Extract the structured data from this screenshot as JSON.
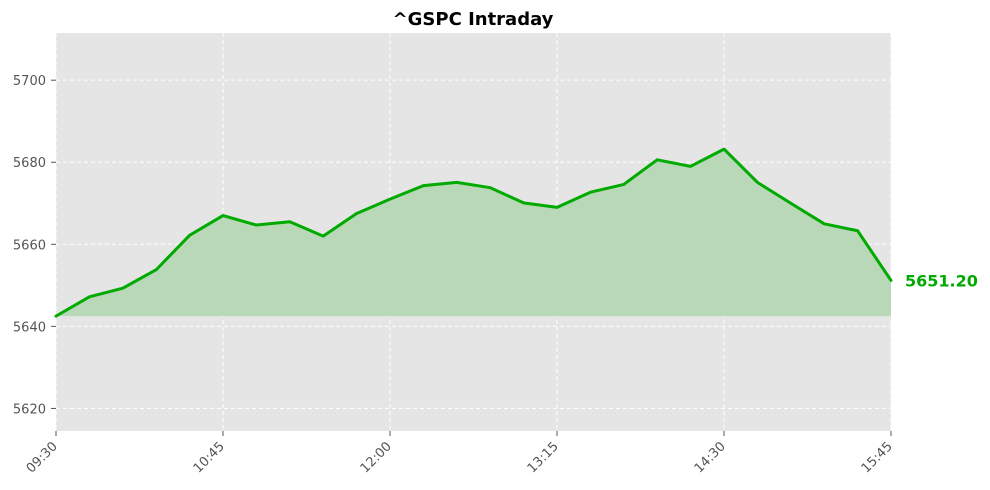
{
  "chart_data": {
    "type": "area",
    "title": "^GSPC Intraday",
    "xlabel": "",
    "ylabel": "",
    "x": [
      "09:30",
      "09:45",
      "10:00",
      "10:15",
      "10:30",
      "10:45",
      "11:00",
      "11:15",
      "11:30",
      "11:45",
      "12:00",
      "12:15",
      "12:30",
      "12:45",
      "13:00",
      "13:15",
      "13:30",
      "13:45",
      "14:00",
      "14:15",
      "14:30",
      "14:45",
      "15:00",
      "15:15",
      "15:30",
      "15:45"
    ],
    "series": [
      {
        "values": [
          5642.5,
          5647.2,
          5649.3,
          5653.8,
          5662.2,
          5667.0,
          5664.7,
          5665.5,
          5662.0,
          5667.5,
          5671.0,
          5674.3,
          5675.1,
          5673.8,
          5670.1,
          5669.0,
          5672.7,
          5674.6,
          5680.6,
          5679.0,
          5683.2,
          5675.1,
          5670.0,
          5665.0,
          5663.3,
          5651.2
        ]
      }
    ],
    "xticks": [
      "09:30",
      "10:45",
      "12:00",
      "13:15",
      "14:30",
      "15:45"
    ],
    "yticks": [
      5620,
      5640,
      5660,
      5680,
      5700
    ],
    "ylim": [
      5614.5,
      5711.5
    ],
    "fill_baseline": 5642.5,
    "last_value_label": "5651.20",
    "grid": true,
    "colors": {
      "line": "#00aa00",
      "fill": "#b8d8b8",
      "background": "#e5e5e5",
      "grid": "#ffffff"
    }
  }
}
